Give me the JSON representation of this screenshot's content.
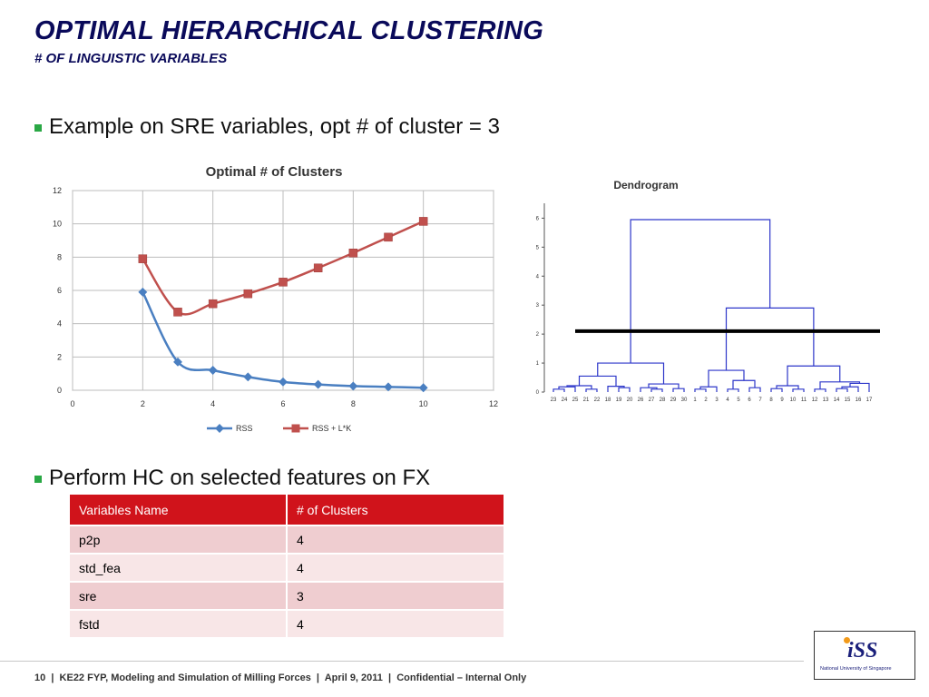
{
  "slide": {
    "title": "OPTIMAL HIERARCHICAL CLUSTERING",
    "subtitle": "# OF LINGUISTIC VARIABLES",
    "bullet1": "Example on SRE variables, opt # of cluster = 3",
    "bullet2": "Perform HC on selected features on FX"
  },
  "chart_data": [
    {
      "type": "line",
      "title": "Optimal # of Clusters",
      "x_ticks": [
        "0",
        "2",
        "4",
        "6",
        "8",
        "10",
        "12"
      ],
      "y_ticks": [
        "0",
        "2",
        "4",
        "6",
        "8",
        "10",
        "12"
      ],
      "xlim": [
        0,
        12
      ],
      "ylim": [
        0,
        12
      ],
      "grid": true,
      "legend_position": "bottom",
      "x": [
        2,
        3,
        4,
        5,
        6,
        7,
        8,
        9,
        10
      ],
      "series": [
        {
          "name": "RSS",
          "values": [
            5.9,
            1.7,
            1.2,
            0.8,
            0.5,
            0.35,
            0.25,
            0.2,
            0.15
          ],
          "color": "#4a7fc1"
        },
        {
          "name": "RSS + L*K",
          "values": [
            7.9,
            4.7,
            5.2,
            5.8,
            6.5,
            7.35,
            8.25,
            9.2,
            10.15
          ],
          "color": "#c0504d"
        }
      ]
    },
    {
      "type": "dendrogram",
      "title": "Dendrogram",
      "y_ticks": [
        "0",
        "1",
        "2",
        "3",
        "4",
        "5",
        "6"
      ],
      "ylim": [
        0,
        6.2
      ],
      "cut_height": 2.1,
      "leaves": [
        "23",
        "24",
        "25",
        "21",
        "22",
        "18",
        "19",
        "20",
        "26",
        "27",
        "28",
        "29",
        "30",
        "1",
        "2",
        "3",
        "4",
        "5",
        "6",
        "7",
        "8",
        "9",
        "10",
        "11",
        "12",
        "13",
        "14",
        "15",
        "16",
        "17"
      ],
      "link_color": "#2c36c9",
      "merges": [
        {
          "id": "m1",
          "l": 0,
          "r": 1,
          "h": 0.1
        },
        {
          "id": "m2",
          "l": 3,
          "r": 4,
          "h": 0.1
        },
        {
          "id": "m3",
          "l": "m1",
          "r": 2,
          "h": 0.18
        },
        {
          "id": "m4",
          "l": "m3",
          "r": "m2",
          "h": 0.22
        },
        {
          "id": "m5",
          "l": 6,
          "r": 7,
          "h": 0.15
        },
        {
          "id": "m6",
          "l": 5,
          "r": "m5",
          "h": 0.2
        },
        {
          "id": "m7",
          "l": "m4",
          "r": "m6",
          "h": 0.55
        },
        {
          "id": "m8",
          "l": 9,
          "r": 10,
          "h": 0.1
        },
        {
          "id": "m9",
          "l": 11,
          "r": 12,
          "h": 0.12
        },
        {
          "id": "m10",
          "l": 8,
          "r": "m8",
          "h": 0.15
        },
        {
          "id": "m11",
          "l": "m10",
          "r": "m9",
          "h": 0.28
        },
        {
          "id": "m12",
          "l": "m7",
          "r": "m11",
          "h": 1.0
        },
        {
          "id": "m13",
          "l": 13,
          "r": 14,
          "h": 0.1
        },
        {
          "id": "m14",
          "l": "m13",
          "r": 15,
          "h": 0.18
        },
        {
          "id": "m15",
          "l": 16,
          "r": 17,
          "h": 0.1
        },
        {
          "id": "m16",
          "l": 18,
          "r": 19,
          "h": 0.15
        },
        {
          "id": "m17",
          "l": "m15",
          "r": "m16",
          "h": 0.4
        },
        {
          "id": "m18",
          "l": "m14",
          "r": "m17",
          "h": 0.75
        },
        {
          "id": "m19",
          "l": 20,
          "r": 21,
          "h": 0.12
        },
        {
          "id": "m20",
          "l": 22,
          "r": 23,
          "h": 0.1
        },
        {
          "id": "m21",
          "l": "m19",
          "r": "m20",
          "h": 0.22
        },
        {
          "id": "m22",
          "l": 24,
          "r": 25,
          "h": 0.1
        },
        {
          "id": "m23",
          "l": 26,
          "r": 27,
          "h": 0.12
        },
        {
          "id": "m24",
          "l": "m23",
          "r": 28,
          "h": 0.18
        },
        {
          "id": "m25",
          "l": "m24",
          "r": 29,
          "h": 0.3
        },
        {
          "id": "m26",
          "l": "m22",
          "r": "m25",
          "h": 0.35
        },
        {
          "id": "m27",
          "l": "m21",
          "r": "m26",
          "h": 0.9
        },
        {
          "id": "m28",
          "l": "m18",
          "r": "m27",
          "h": 2.9
        },
        {
          "id": "m29",
          "l": "m12",
          "r": "m28",
          "h": 5.95
        }
      ]
    }
  ],
  "table": {
    "headers": [
      "Variables Name",
      "# of Clusters"
    ],
    "rows": [
      [
        "p2p",
        "4"
      ],
      [
        "std_fea",
        "4"
      ],
      [
        "sre",
        "3"
      ],
      [
        "fstd",
        "4"
      ]
    ]
  },
  "footer": {
    "text": "10  |  KE22 FYP, Modeling and Simulation of Milling Forces  |  April 9, 2011  |  Confidential – Internal Only"
  },
  "logo": {
    "mark": "iSS",
    "subtitle": "National University of Singapore"
  }
}
